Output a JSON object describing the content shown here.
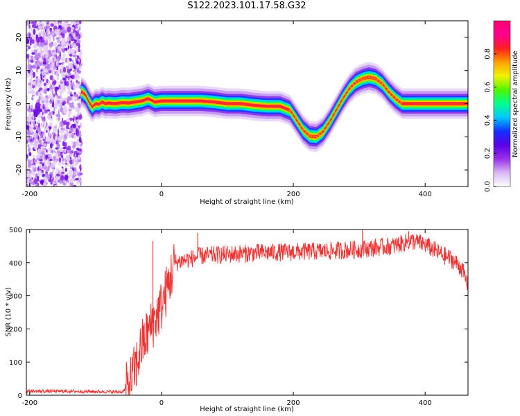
{
  "title": "S122.2023.101.17.58.G32",
  "colors": {
    "snr_line": "#ee3333",
    "axis": "#000000",
    "colormap": [
      "#ffffff",
      "#d9b8f5",
      "#9a30ea",
      "#5a00e6",
      "#1330ff",
      "#00c8ff",
      "#00ff90",
      "#50f500",
      "#f2f200",
      "#ffa000",
      "#ff2020",
      "#ff0090",
      "#f80070"
    ]
  },
  "chart_data": [
    {
      "type": "heatmap",
      "name_in_image": "spectrogram",
      "xlabel": "Height of straight line (km)",
      "ylabel": "Frequency (Hz)",
      "xlim": [
        -205,
        465
      ],
      "ylim": [
        -25,
        25
      ],
      "xticks": [
        -200,
        0,
        200,
        400
      ],
      "yticks": [
        -20,
        -10,
        0,
        10,
        20
      ],
      "colorbar": {
        "label": "Normalized spectral amplitude",
        "range": [
          0,
          1
        ],
        "ticks": [
          "0.0",
          "0.2",
          "0.4",
          "0.6",
          "0.8"
        ]
      },
      "noise_region_x": [
        -205,
        -122
      ],
      "ridge": {
        "x": [
          -120,
          -115,
          -110,
          -105,
          -100,
          -95,
          -90,
          -85,
          -80,
          -70,
          -60,
          -50,
          -40,
          -30,
          -20,
          -10,
          0,
          20,
          40,
          60,
          80,
          100,
          120,
          140,
          160,
          180,
          195,
          205,
          215,
          225,
          235,
          245,
          255,
          265,
          275,
          285,
          295,
          305,
          315,
          325,
          335,
          345,
          355,
          365,
          380,
          400,
          420,
          440,
          465
        ],
        "freq": [
          3.5,
          2.5,
          0.5,
          -1,
          0,
          -0.2,
          0.5,
          0,
          0.2,
          0,
          0.3,
          0.2,
          0.5,
          0.8,
          1.5,
          0.5,
          0.8,
          0.8,
          0.8,
          0.8,
          0.5,
          0,
          0,
          -0.5,
          -0.8,
          -0.8,
          -2,
          -5,
          -8,
          -9.8,
          -10,
          -8.5,
          -5.5,
          -2,
          1.5,
          4.5,
          6.5,
          7.5,
          8,
          7.5,
          6,
          3.5,
          1.5,
          0,
          0,
          0,
          0,
          0,
          0
        ]
      }
    },
    {
      "type": "line",
      "name_in_image": "snr",
      "xlabel": "Height of straight line (km)",
      "ylabel": "SNR (10 * v/v)",
      "xlim": [
        -205,
        465
      ],
      "ylim": [
        0,
        500
      ],
      "xticks": [
        -200,
        0,
        200,
        400
      ],
      "yticks": [
        0,
        100,
        200,
        300,
        400,
        500
      ],
      "envelope": {
        "x": [
          -205,
          -150,
          -100,
          -60,
          -50,
          -40,
          -30,
          -25,
          -20,
          -10,
          0,
          10,
          20,
          40,
          60,
          100,
          150,
          200,
          250,
          300,
          350,
          380,
          400,
          420,
          440,
          455,
          465
        ],
        "y": [
          12,
          12,
          11,
          10,
          25,
          80,
          150,
          170,
          190,
          230,
          270,
          330,
          400,
          410,
          420,
          425,
          430,
          432,
          435,
          440,
          450,
          465,
          455,
          430,
          410,
          385,
          330
        ]
      },
      "spikes": [
        {
          "x": -13,
          "y": 465
        },
        {
          "x": 55,
          "y": 490
        },
        {
          "x": 305,
          "y": 500
        },
        {
          "x": 375,
          "y": 495
        }
      ]
    }
  ]
}
